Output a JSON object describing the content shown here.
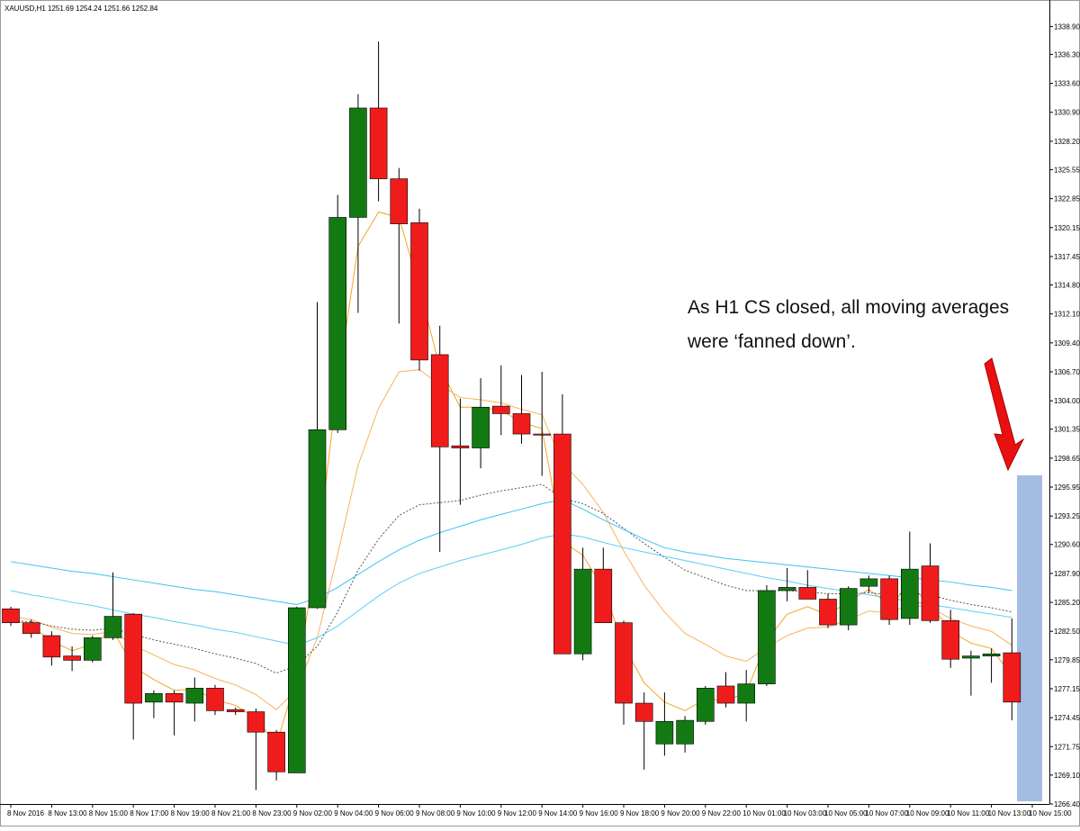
{
  "chart_data": {
    "type": "candlestick",
    "header": "XAUUSD,H1  1251.69 1254.24 1251.66 1252.84",
    "annotation": [
      "As H1 CS closed, all moving averages",
      "were ‘fanned down’."
    ],
    "up_color": "#137a13",
    "down_color": "#f01c1c",
    "open": [
      1284.6,
      1283.3,
      1282.1,
      1280.2,
      1279.8,
      1281.9,
      1284.1,
      1275.9,
      1276.7,
      1275.8,
      1277.2,
      1275.2,
      1275.0,
      1273.1,
      1269.3,
      1284.7,
      1301.3,
      1321.1,
      1331.3,
      1324.7,
      1320.6,
      1308.3,
      1299.8,
      1299.6,
      1303.5,
      1302.8,
      1300.9,
      1300.9,
      1280.4,
      1288.3,
      1283.3,
      1275.8,
      1272.0,
      1272.0,
      1274.1,
      1277.4,
      1275.8,
      1277.6,
      1286.3,
      1286.6,
      1285.5,
      1283.1,
      1286.7,
      1287.4,
      1283.7,
      1288.6,
      1283.5,
      1280.0,
      1280.2,
      1280.5
    ],
    "high": [
      1284.8,
      1283.6,
      1282.5,
      1281.1,
      1282.1,
      1288.0,
      1284.2,
      1277.0,
      1277.0,
      1278.2,
      1277.5,
      1275.4,
      1275.3,
      1273.3,
      1284.8,
      1313.2,
      1323.2,
      1332.6,
      1337.5,
      1325.7,
      1321.9,
      1311.0,
      1304.2,
      1306.1,
      1307.3,
      1306.4,
      1306.7,
      1304.6,
      1290.3,
      1290.3,
      1283.5,
      1276.8,
      1276.8,
      1274.6,
      1277.4,
      1278.7,
      1278.9,
      1286.8,
      1288.4,
      1288.2,
      1286.0,
      1286.7,
      1287.7,
      1287.7,
      1291.8,
      1290.7,
      1284.5,
      1280.7,
      1280.9,
      1283.7
    ],
    "low": [
      1283.0,
      1281.9,
      1279.3,
      1278.8,
      1279.6,
      1281.7,
      1272.4,
      1274.4,
      1272.8,
      1274.1,
      1274.7,
      1274.7,
      1267.7,
      1268.6,
      1269.3,
      1284.6,
      1301.0,
      1312.2,
      1322.6,
      1311.2,
      1306.8,
      1289.9,
      1294.3,
      1297.7,
      1300.8,
      1300.0,
      1297.0,
      1280.4,
      1279.8,
      1283.3,
      1273.8,
      1269.6,
      1270.9,
      1271.2,
      1273.8,
      1275.4,
      1274.1,
      1277.4,
      1285.3,
      1285.5,
      1282.8,
      1282.6,
      1286.1,
      1283.1,
      1283.1,
      1283.3,
      1279.1,
      1276.5,
      1277.7,
      1274.2
    ],
    "close": [
      1283.3,
      1282.3,
      1280.1,
      1279.8,
      1281.9,
      1283.9,
      1275.8,
      1276.7,
      1275.9,
      1277.2,
      1275.1,
      1275.0,
      1273.1,
      1269.4,
      1284.7,
      1301.3,
      1321.1,
      1331.3,
      1324.7,
      1320.5,
      1307.8,
      1299.7,
      1299.6,
      1303.4,
      1302.8,
      1300.9,
      1300.8,
      1280.4,
      1288.3,
      1283.3,
      1275.8,
      1274.1,
      1274.1,
      1274.2,
      1277.2,
      1275.8,
      1277.6,
      1286.3,
      1286.6,
      1285.5,
      1283.1,
      1286.5,
      1287.4,
      1283.6,
      1288.3,
      1283.5,
      1279.9,
      1280.2,
      1280.4,
      1275.9
    ],
    "moving_averages": [
      {
        "color": "#f5a623",
        "dashed": false,
        "values": [
          1283.7,
          1283.0,
          1281.6,
          1280.7,
          1281.3,
          1282.6,
          1279.2,
          1278.0,
          1277.0,
          1277.1,
          1276.1,
          1275.6,
          1274.4,
          1271.9,
          1278.3,
          1289.8,
          1305.5,
          1318.4,
          1321.6,
          1321.1,
          1314.5,
          1307.1,
          1303.4,
          1303.4,
          1303.1,
          1302.0,
          1301.4,
          1290.9,
          1289.6,
          1286.5,
          1281.2,
          1277.7,
          1275.9,
          1275.1,
          1276.2,
          1276.0,
          1276.8,
          1281.6,
          1284.1,
          1284.8,
          1284.0,
          1285.3,
          1286.4,
          1285.0,
          1286.7,
          1285.1,
          1282.5,
          1281.4,
          1280.9,
          1278.4
        ]
      },
      {
        "color": "#f7b35a",
        "dashed": false,
        "values": [
          1283.9,
          1283.6,
          1282.9,
          1282.3,
          1282.2,
          1282.5,
          1281.2,
          1280.3,
          1279.4,
          1278.9,
          1278.1,
          1277.5,
          1276.6,
          1275.2,
          1277.1,
          1281.9,
          1289.7,
          1298.0,
          1303.3,
          1306.7,
          1306.9,
          1305.5,
          1304.3,
          1304.1,
          1303.8,
          1303.2,
          1302.7,
          1298.2,
          1296.2,
          1293.6,
          1290.0,
          1286.8,
          1284.3,
          1282.3,
          1281.3,
          1280.2,
          1279.7,
          1281.0,
          1282.1,
          1282.8,
          1282.9,
          1283.6,
          1284.4,
          1284.2,
          1285.0,
          1284.7,
          1283.7,
          1283.0,
          1282.5,
          1281.2
        ]
      },
      {
        "color": "#555555",
        "dashed": true,
        "values": [
          1283.5,
          1283.4,
          1283.0,
          1282.7,
          1282.6,
          1282.8,
          1282.2,
          1281.7,
          1281.3,
          1280.9,
          1280.4,
          1280.0,
          1279.5,
          1278.6,
          1279.3,
          1281.1,
          1284.3,
          1288.2,
          1291.1,
          1293.3,
          1294.3,
          1294.5,
          1294.7,
          1295.2,
          1295.6,
          1295.9,
          1296.2,
          1294.9,
          1294.4,
          1293.5,
          1292.1,
          1290.7,
          1289.4,
          1288.2,
          1287.5,
          1286.8,
          1286.3,
          1286.3,
          1286.3,
          1286.2,
          1286.0,
          1286.0,
          1286.1,
          1285.9,
          1286.1,
          1285.9,
          1285.4,
          1285.0,
          1284.7,
          1284.3
        ]
      },
      {
        "color": "#3cc4f0",
        "dashed": false,
        "values": [
          1289.0,
          1288.7,
          1288.4,
          1288.1,
          1287.9,
          1287.6,
          1287.3,
          1287.0,
          1286.7,
          1286.4,
          1286.2,
          1285.9,
          1285.6,
          1285.3,
          1285.0,
          1285.6,
          1286.6,
          1287.8,
          1289.0,
          1290.1,
          1291.0,
          1291.7,
          1292.3,
          1292.9,
          1293.4,
          1293.9,
          1294.4,
          1294.8,
          1293.9,
          1292.9,
          1292.0,
          1291.1,
          1290.3,
          1289.9,
          1289.6,
          1289.3,
          1289.1,
          1288.9,
          1288.7,
          1288.5,
          1288.3,
          1288.1,
          1287.9,
          1287.7,
          1287.5,
          1287.3,
          1287.1,
          1286.8,
          1286.6,
          1286.3
        ]
      },
      {
        "color": "#5ad0f5",
        "dashed": false,
        "values": [
          1286.3,
          1285.9,
          1285.6,
          1285.2,
          1284.9,
          1284.5,
          1284.1,
          1283.8,
          1283.4,
          1283.1,
          1282.7,
          1282.4,
          1282.0,
          1281.6,
          1281.2,
          1281.9,
          1283.0,
          1284.4,
          1285.8,
          1287.0,
          1287.9,
          1288.5,
          1289.1,
          1289.6,
          1290.1,
          1290.6,
          1291.2,
          1291.6,
          1291.3,
          1290.8,
          1290.3,
          1289.9,
          1289.5,
          1289.1,
          1288.7,
          1288.3,
          1287.9,
          1287.5,
          1287.2,
          1286.8,
          1286.5,
          1286.2,
          1285.9,
          1285.6,
          1285.3,
          1285.0,
          1284.7,
          1284.4,
          1284.1,
          1283.8
        ]
      }
    ],
    "x_tick_labels": [
      "8 Nov 2016",
      "8 Nov 13:00",
      "8 Nov 15:00",
      "8 Nov 17:00",
      "8 Nov 19:00",
      "8 Nov 21:00",
      "8 Nov 23:00",
      "9 Nov 02:00",
      "9 Nov 04:00",
      "9 Nov 06:00",
      "9 Nov 08:00",
      "9 Nov 10:00",
      "9 Nov 12:00",
      "9 Nov 14:00",
      "9 Nov 16:00",
      "9 Nov 18:00",
      "9 Nov 20:00",
      "9 Nov 22:00",
      "10 Nov 01:00",
      "10 Nov 03:00",
      "10 Nov 05:00",
      "10 Nov 07:00",
      "10 Nov 09:00",
      "10 Nov 11:00",
      "10 Nov 13:00",
      "10 Nov 15:00"
    ],
    "ylim": [
      1266.4,
      1340.7
    ],
    "yticks": [
      {
        "value": 1266.4,
        "label": "1266.40"
      },
      {
        "value": 1269.1,
        "label": "1269.10"
      },
      1271.75,
      1274.45,
      1277.15,
      1279.85,
      {
        "value": 1282.5,
        "label": "1282.50"
      },
      {
        "value": 1285.2,
        "label": "1285.20"
      },
      {
        "value": 1287.9,
        "label": "1287.90"
      },
      {
        "value": 1290.6,
        "label": "1290.60"
      },
      1293.25,
      1295.95,
      1298.65,
      1301.35,
      {
        "value": 1304,
        "label": "1304.00"
      },
      {
        "value": 1306.7,
        "label": "1306.70"
      },
      {
        "value": 1309.4,
        "label": "1309.40"
      },
      {
        "value": 1312.1,
        "label": "1312.10"
      },
      {
        "value": 1314.8,
        "label": "1314.80"
      },
      1317.45,
      1320.15,
      1322.85,
      1325.55,
      {
        "value": 1328.2,
        "label": "1328.20"
      },
      {
        "value": 1330.9,
        "label": "1330.90"
      },
      {
        "value": 1333.6,
        "label": "1333.60"
      },
      {
        "value": 1336.3,
        "label": "1336.30"
      },
      {
        "value": 1338.9,
        "label": "1338.90"
      }
    ]
  }
}
